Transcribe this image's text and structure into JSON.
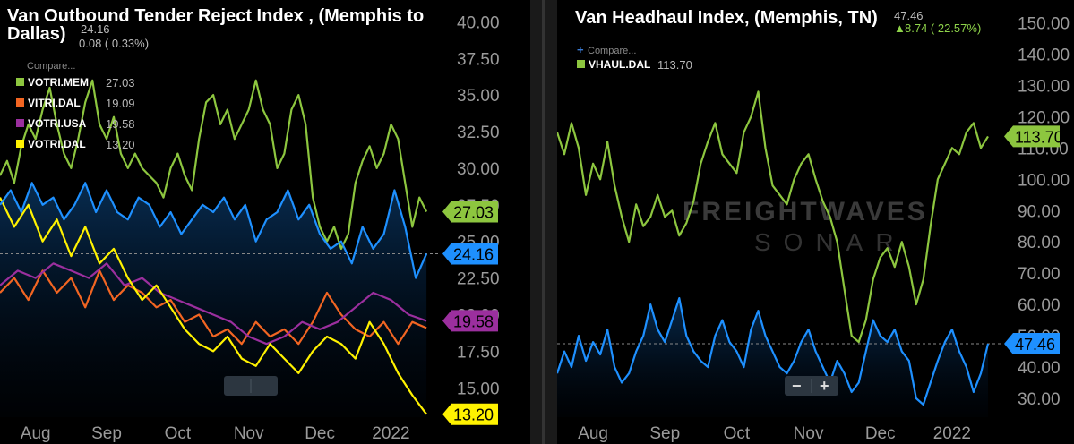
{
  "chart_data": [
    {
      "type": "line",
      "title": "Van Outbound Tender Reject Index , (Memphis to Dallas)",
      "title_line1": "Van Outbound Tender Reject Index , (Memphis to",
      "title_line2": "Dallas)",
      "header_value": "24.16",
      "header_change": "0.08 ( 0.33%)",
      "compare_label": "Compare...",
      "ylim": [
        13,
        41
      ],
      "y_ticks": [
        "40.00",
        "37.50",
        "35.00",
        "32.50",
        "30.00",
        "27.50",
        "25.00",
        "22.50",
        "20.00",
        "17.50",
        "15.00"
      ],
      "x_ticks": [
        "Aug",
        "Sep",
        "Oct",
        "Nov",
        "Dec",
        "2022"
      ],
      "x_tick_pos": [
        0.5,
        1.5,
        2.5,
        3.5,
        4.5,
        5.5
      ],
      "x_max": 6.2,
      "reference_value": 24.16,
      "grid": false,
      "legend_position": "top-left",
      "series": [
        {
          "name": "VOTRI.MEM",
          "legend_value": "27.03",
          "badge": "27.03",
          "color": "#8dc63f",
          "x": [
            0.0,
            0.1,
            0.2,
            0.3,
            0.4,
            0.5,
            0.6,
            0.7,
            0.8,
            0.9,
            1.0,
            1.1,
            1.2,
            1.3,
            1.4,
            1.5,
            1.6,
            1.7,
            1.8,
            1.9,
            2.0,
            2.1,
            2.2,
            2.3,
            2.4,
            2.5,
            2.6,
            2.7,
            2.8,
            2.9,
            3.0,
            3.1,
            3.2,
            3.3,
            3.4,
            3.5,
            3.6,
            3.7,
            3.8,
            3.9,
            4.0,
            4.1,
            4.2,
            4.3,
            4.4,
            4.5,
            4.6,
            4.7,
            4.8,
            4.9,
            5.0,
            5.1,
            5.2,
            5.3,
            5.4,
            5.5,
            5.6,
            5.7,
            5.8,
            5.9,
            6.0
          ],
          "values": [
            29.5,
            30.5,
            29.0,
            31.5,
            33.0,
            32.0,
            34.0,
            35.5,
            33.0,
            31.0,
            30.0,
            32.0,
            34.5,
            36.0,
            33.0,
            32.0,
            33.5,
            31.0,
            30.0,
            31.0,
            30.0,
            29.5,
            29.0,
            28.0,
            30.0,
            31.0,
            29.5,
            28.5,
            32.0,
            34.5,
            35.0,
            33.0,
            34.0,
            32.0,
            33.0,
            34.0,
            36.0,
            34.0,
            33.0,
            30.0,
            31.0,
            34.0,
            35.0,
            33.0,
            28.0,
            26.0,
            25.0,
            26.0,
            24.5,
            25.5,
            29.0,
            30.5,
            31.5,
            30.0,
            31.0,
            33.0,
            32.0,
            29.0,
            26.0,
            28.0,
            27.03
          ]
        },
        {
          "name": "VITRI.DAL",
          "legend_value": "19.09",
          "badge": "",
          "color": "#f26522",
          "x": [
            0.0,
            0.2,
            0.4,
            0.6,
            0.8,
            1.0,
            1.2,
            1.4,
            1.6,
            1.8,
            2.0,
            2.2,
            2.4,
            2.6,
            2.8,
            3.0,
            3.2,
            3.4,
            3.6,
            3.8,
            4.0,
            4.2,
            4.4,
            4.6,
            4.8,
            5.0,
            5.2,
            5.4,
            5.6,
            5.8,
            6.0
          ],
          "values": [
            21.5,
            22.5,
            21.0,
            23.0,
            21.5,
            22.5,
            20.5,
            23.0,
            21.0,
            22.0,
            21.5,
            20.5,
            21.0,
            19.5,
            20.0,
            18.5,
            19.0,
            18.0,
            19.5,
            18.5,
            19.0,
            18.0,
            19.5,
            21.5,
            20.0,
            19.0,
            18.5,
            19.5,
            18.0,
            19.5,
            19.09
          ]
        },
        {
          "name": "VOTRI.USA",
          "legend_value": "19.58",
          "badge": "19.58",
          "color": "#9b2f9e",
          "x": [
            0.0,
            0.25,
            0.5,
            0.75,
            1.0,
            1.25,
            1.5,
            1.75,
            2.0,
            2.25,
            2.5,
            2.75,
            3.0,
            3.25,
            3.5,
            3.75,
            4.0,
            4.25,
            4.5,
            4.75,
            5.0,
            5.25,
            5.5,
            5.75,
            6.0
          ],
          "values": [
            22.0,
            23.0,
            22.5,
            23.5,
            23.0,
            22.5,
            23.5,
            22.0,
            22.5,
            21.5,
            21.0,
            20.5,
            20.0,
            19.5,
            18.5,
            18.0,
            18.5,
            19.5,
            19.0,
            19.5,
            20.5,
            21.5,
            21.0,
            20.0,
            19.58
          ]
        },
        {
          "name": "VOTRI.DAL",
          "legend_value": "13.20",
          "badge": "13.20",
          "color": "#fff200",
          "x": [
            0.0,
            0.2,
            0.4,
            0.6,
            0.8,
            1.0,
            1.2,
            1.4,
            1.6,
            1.8,
            2.0,
            2.2,
            2.4,
            2.6,
            2.8,
            3.0,
            3.2,
            3.4,
            3.6,
            3.8,
            4.0,
            4.2,
            4.4,
            4.6,
            4.8,
            5.0,
            5.2,
            5.4,
            5.6,
            5.8,
            6.0
          ],
          "values": [
            28.0,
            26.0,
            27.5,
            25.0,
            26.5,
            24.0,
            26.0,
            23.5,
            24.5,
            22.5,
            21.0,
            22.0,
            20.5,
            19.0,
            18.0,
            17.5,
            18.5,
            17.0,
            16.5,
            18.0,
            17.0,
            16.0,
            17.5,
            18.5,
            18.0,
            17.0,
            19.5,
            18.0,
            16.0,
            14.5,
            13.2
          ]
        },
        {
          "name": "",
          "legend_value": "",
          "badge": "24.16",
          "color": "#1e90ff",
          "x": [
            0.0,
            0.15,
            0.3,
            0.45,
            0.6,
            0.75,
            0.9,
            1.05,
            1.2,
            1.35,
            1.5,
            1.65,
            1.8,
            1.95,
            2.1,
            2.25,
            2.4,
            2.55,
            2.7,
            2.85,
            3.0,
            3.15,
            3.3,
            3.45,
            3.6,
            3.75,
            3.9,
            4.05,
            4.2,
            4.35,
            4.5,
            4.65,
            4.8,
            4.95,
            5.1,
            5.25,
            5.4,
            5.55,
            5.7,
            5.85,
            6.0
          ],
          "values": [
            27.5,
            28.5,
            27.0,
            29.0,
            27.5,
            28.0,
            26.5,
            27.5,
            29.0,
            27.0,
            28.5,
            27.0,
            26.5,
            28.0,
            27.5,
            26.0,
            27.0,
            25.5,
            26.5,
            27.5,
            27.0,
            28.0,
            26.5,
            27.5,
            25.0,
            26.5,
            27.0,
            28.5,
            26.5,
            27.5,
            25.5,
            24.5,
            25.0,
            23.5,
            26.0,
            24.5,
            25.5,
            28.5,
            26.0,
            22.5,
            24.16
          ]
        }
      ]
    },
    {
      "type": "line",
      "title": "Van Headhaul Index, (Memphis, TN)",
      "header_value": "47.46",
      "header_change": "8.74 ( 22.57%)",
      "compare_label": "Compare...",
      "ylim": [
        24,
        155
      ],
      "y_ticks": [
        "150.00",
        "140.00",
        "130.00",
        "120.00",
        "110.00",
        "100.00",
        "90.00",
        "80.00",
        "70.00",
        "60.00",
        "50.00",
        "40.00",
        "30.00"
      ],
      "x_ticks": [
        "Aug",
        "Sep",
        "Oct",
        "Nov",
        "Dec",
        "2022"
      ],
      "x_tick_pos": [
        0.5,
        1.5,
        2.5,
        3.5,
        4.5,
        5.5
      ],
      "x_max": 6.2,
      "reference_value": 47.46,
      "grid": false,
      "legend_position": "top-left",
      "watermark_top": "FREIGHTWAVES",
      "watermark_bottom": "SONAR",
      "zoom_minus": "−",
      "zoom_plus": "+",
      "series": [
        {
          "name": "VHAUL.DAL",
          "legend_value": "113.70",
          "badge": "113.70",
          "color": "#8dc63f",
          "x": [
            0.0,
            0.1,
            0.2,
            0.3,
            0.4,
            0.5,
            0.6,
            0.7,
            0.8,
            0.9,
            1.0,
            1.1,
            1.2,
            1.3,
            1.4,
            1.5,
            1.6,
            1.7,
            1.8,
            1.9,
            2.0,
            2.1,
            2.2,
            2.3,
            2.4,
            2.5,
            2.6,
            2.7,
            2.8,
            2.9,
            3.0,
            3.1,
            3.2,
            3.3,
            3.4,
            3.5,
            3.6,
            3.7,
            3.8,
            3.9,
            4.0,
            4.1,
            4.2,
            4.3,
            4.4,
            4.5,
            4.6,
            4.7,
            4.8,
            4.9,
            5.0,
            5.1,
            5.2,
            5.3,
            5.4,
            5.5,
            5.6,
            5.7,
            5.8,
            5.9,
            6.0
          ],
          "values": [
            115,
            108,
            118,
            110,
            95,
            105,
            100,
            112,
            98,
            88,
            80,
            92,
            85,
            88,
            95,
            88,
            90,
            82,
            86,
            93,
            105,
            112,
            118,
            108,
            105,
            102,
            115,
            120,
            128,
            110,
            98,
            95,
            92,
            100,
            105,
            108,
            100,
            93,
            88,
            80,
            65,
            50,
            48,
            55,
            68,
            75,
            78,
            72,
            80,
            72,
            60,
            68,
            85,
            100,
            105,
            110,
            108,
            115,
            118,
            110,
            113.7
          ]
        },
        {
          "name": "",
          "legend_value": "",
          "badge": "47.46",
          "color": "#1e90ff",
          "x": [
            0.0,
            0.1,
            0.2,
            0.3,
            0.4,
            0.5,
            0.6,
            0.7,
            0.8,
            0.9,
            1.0,
            1.1,
            1.2,
            1.3,
            1.4,
            1.5,
            1.6,
            1.7,
            1.8,
            1.9,
            2.0,
            2.1,
            2.2,
            2.3,
            2.4,
            2.5,
            2.6,
            2.7,
            2.8,
            2.9,
            3.0,
            3.1,
            3.2,
            3.3,
            3.4,
            3.5,
            3.6,
            3.7,
            3.8,
            3.9,
            4.0,
            4.1,
            4.2,
            4.3,
            4.4,
            4.5,
            4.6,
            4.7,
            4.8,
            4.9,
            5.0,
            5.1,
            5.2,
            5.3,
            5.4,
            5.5,
            5.6,
            5.7,
            5.8,
            5.9,
            6.0
          ],
          "values": [
            38,
            45,
            40,
            50,
            42,
            48,
            44,
            52,
            40,
            35,
            38,
            45,
            50,
            60,
            52,
            48,
            55,
            62,
            50,
            45,
            42,
            40,
            50,
            55,
            48,
            45,
            40,
            52,
            58,
            50,
            45,
            40,
            38,
            42,
            48,
            52,
            45,
            40,
            35,
            42,
            38,
            32,
            35,
            45,
            55,
            50,
            48,
            52,
            45,
            42,
            30,
            28,
            35,
            42,
            48,
            52,
            45,
            40,
            32,
            38,
            47.46
          ]
        }
      ]
    }
  ]
}
